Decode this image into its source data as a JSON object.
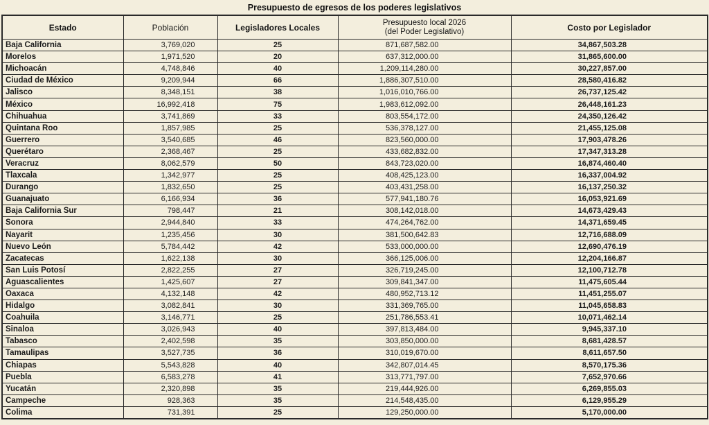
{
  "title": "Presupuesto de egresos de los poderes legislativos",
  "colors": {
    "background": "#f3eedd",
    "border": "#2a2a2a",
    "text": "#1b1b1b"
  },
  "chart_data": {
    "type": "table",
    "title": "Presupuesto de egresos de los poderes legislativos",
    "columns": [
      "Estado",
      "Población",
      "Legisladores Locales",
      "Presupuesto local 2026 (del Poder Legislativo)",
      "Costo por Legislador"
    ],
    "headers": {
      "estado": "Estado",
      "poblacion": "Población",
      "legisladores": "Legisladores Locales",
      "presupuesto_line1": "Presupuesto local 2026",
      "presupuesto_line2": "(del Poder Legislativo)",
      "costo": "Costo por Legislador"
    },
    "rows": [
      [
        "Baja California",
        "3,769,020",
        "25",
        "871,687,582.00",
        "34,867,503.28"
      ],
      [
        "Morelos",
        "1,971,520",
        "20",
        "637,312,000.00",
        "31,865,600.00"
      ],
      [
        "Michoacán",
        "4,748,846",
        "40",
        "1,209,114,280.00",
        "30,227,857.00"
      ],
      [
        "Ciudad de México",
        "9,209,944",
        "66",
        "1,886,307,510.00",
        "28,580,416.82"
      ],
      [
        "Jalisco",
        "8,348,151",
        "38",
        "1,016,010,766.00",
        "26,737,125.42"
      ],
      [
        "México",
        "16,992,418",
        "75",
        "1,983,612,092.00",
        "26,448,161.23"
      ],
      [
        "Chihuahua",
        "3,741,869",
        "33",
        "803,554,172.00",
        "24,350,126.42"
      ],
      [
        "Quintana Roo",
        "1,857,985",
        "25",
        "536,378,127.00",
        "21,455,125.08"
      ],
      [
        "Guerrero",
        "3,540,685",
        "46",
        "823,560,000.00",
        "17,903,478.26"
      ],
      [
        "Querétaro",
        "2,368,467",
        "25",
        "433,682,832.00",
        "17,347,313.28"
      ],
      [
        "Veracruz",
        "8,062,579",
        "50",
        "843,723,020.00",
        "16,874,460.40"
      ],
      [
        "Tlaxcala",
        "1,342,977",
        "25",
        "408,425,123.00",
        "16,337,004.92"
      ],
      [
        "Durango",
        "1,832,650",
        "25",
        "403,431,258.00",
        "16,137,250.32"
      ],
      [
        "Guanajuato",
        "6,166,934",
        "36",
        "577,941,180.76",
        "16,053,921.69"
      ],
      [
        "Baja California Sur",
        "798,447",
        "21",
        "308,142,018.00",
        "14,673,429.43"
      ],
      [
        "Sonora",
        "2,944,840",
        "33",
        "474,264,762.00",
        "14,371,659.45"
      ],
      [
        "Nayarit",
        "1,235,456",
        "30",
        "381,500,642.83",
        "12,716,688.09"
      ],
      [
        "Nuevo León",
        "5,784,442",
        "42",
        "533,000,000.00",
        "12,690,476.19"
      ],
      [
        "Zacatecas",
        "1,622,138",
        "30",
        "366,125,006.00",
        "12,204,166.87"
      ],
      [
        "San Luis Potosí",
        "2,822,255",
        "27",
        "326,719,245.00",
        "12,100,712.78"
      ],
      [
        "Aguascalientes",
        "1,425,607",
        "27",
        "309,841,347.00",
        "11,475,605.44"
      ],
      [
        "Oaxaca",
        "4,132,148",
        "42",
        "480,952,713.12",
        "11,451,255.07"
      ],
      [
        "Hidalgo",
        "3,082,841",
        "30",
        "331,369,765.00",
        "11,045,658.83"
      ],
      [
        "Coahuila",
        "3,146,771",
        "25",
        "251,786,553.41",
        "10,071,462.14"
      ],
      [
        "Sinaloa",
        "3,026,943",
        "40",
        "397,813,484.00",
        "9,945,337.10"
      ],
      [
        "Tabasco",
        "2,402,598",
        "35",
        "303,850,000.00",
        "8,681,428.57"
      ],
      [
        "Tamaulipas",
        "3,527,735",
        "36",
        "310,019,670.00",
        "8,611,657.50"
      ],
      [
        "Chiapas",
        "5,543,828",
        "40",
        "342,807,014.45",
        "8,570,175.36"
      ],
      [
        "Puebla",
        "6,583,278",
        "41",
        "313,771,797.00",
        "7,652,970.66"
      ],
      [
        "Yucatán",
        "2,320,898",
        "35",
        "219,444,926.00",
        "6,269,855.03"
      ],
      [
        "Campeche",
        "928,363",
        "35",
        "214,548,435.00",
        "6,129,955.29"
      ],
      [
        "Colima",
        "731,391",
        "25",
        "129,250,000.00",
        "5,170,000.00"
      ]
    ]
  }
}
